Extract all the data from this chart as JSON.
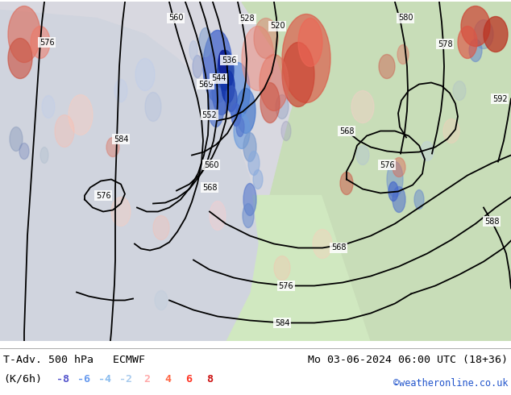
{
  "title_left": "T-Adv. 500 hPa   ECMWF",
  "title_right": "Mo 03-06-2024 06:00 UTC (18+36)",
  "subtitle_left": "(K/6h)",
  "watermark": "©weatheronline.co.uk",
  "legend_values": [
    "-8",
    "-6",
    "-4",
    "-2",
    "2",
    "4",
    "6",
    "8"
  ],
  "legend_colors": [
    "#5555cc",
    "#6699ee",
    "#88bbee",
    "#aaccee",
    "#ffaaaa",
    "#ff6644",
    "#ff3322",
    "#cc1111"
  ],
  "bg_color": "#ffffff",
  "bottom_bar_bg": "#ffffff",
  "bottom_text_color": "#000000",
  "font_size_title": 9.5,
  "font_size_legend": 9.5,
  "fig_width": 6.34,
  "fig_height": 4.9,
  "dpi": 100,
  "map_colors": {
    "ocean_left": "#d8d8e8",
    "ocean_center": "#e0e4ec",
    "land_green": "#c8e8b0",
    "land_light": "#d8eec8",
    "land_dark": "#b8d8a0"
  }
}
